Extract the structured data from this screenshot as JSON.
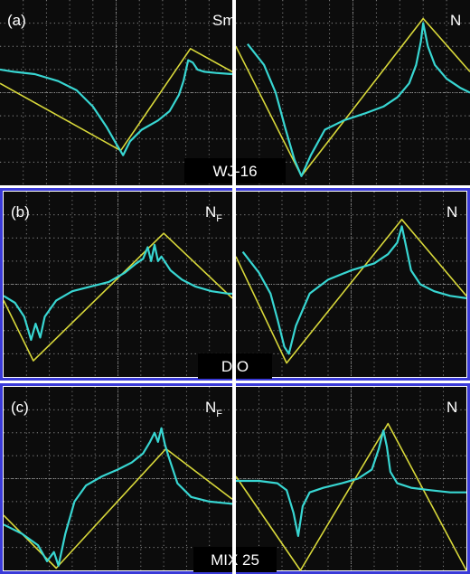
{
  "rows": [
    {
      "label": "(a)",
      "sample": "WJ-16",
      "border_color": "#ffffff",
      "panels": [
        {
          "phase": "SmA",
          "chart_data": {
            "type": "line",
            "xlim": [
              0,
              10
            ],
            "ylim": [
              0,
              8
            ],
            "grid": true,
            "series": [
              {
                "color": "#d8d83a",
                "x": [
                  0,
                  5.2,
                  8.2,
                  10
                ],
                "y": [
                  4.4,
                  1.5,
                  5.9,
                  4.9
                ]
              },
              {
                "color": "#38d6d2",
                "x": [
                  0,
                  0.6,
                  1.5,
                  2.5,
                  3.3,
                  4.0,
                  4.6,
                  5.0,
                  5.3,
                  5.6,
                  6.1,
                  6.8,
                  7.3,
                  7.7,
                  7.9,
                  8.1,
                  8.3,
                  8.5,
                  8.8,
                  9.3,
                  10
                ],
                "y": [
                  5.0,
                  4.9,
                  4.8,
                  4.5,
                  4.1,
                  3.4,
                  2.5,
                  1.8,
                  1.3,
                  1.9,
                  2.4,
                  2.8,
                  3.2,
                  3.9,
                  4.5,
                  5.4,
                  5.3,
                  5.0,
                  4.9,
                  4.85,
                  4.8
                ]
              }
            ]
          }
        },
        {
          "phase": "N",
          "chart_data": {
            "type": "line",
            "xlim": [
              0,
              10
            ],
            "ylim": [
              0,
              8
            ],
            "grid": true,
            "series": [
              {
                "color": "#d8d83a",
                "x": [
                  0,
                  2.8,
                  8.0,
                  10
                ],
                "y": [
                  6.0,
                  0.4,
                  7.2,
                  4.9
                ]
              },
              {
                "color": "#38d6d2",
                "x": [
                  0.5,
                  1.2,
                  1.7,
                  2.1,
                  2.5,
                  2.8,
                  3.2,
                  3.8,
                  4.6,
                  5.5,
                  6.3,
                  6.9,
                  7.4,
                  7.7,
                  7.9,
                  8.0,
                  8.2,
                  8.5,
                  9.0,
                  9.6,
                  10
                ],
                "y": [
                  6.1,
                  5.2,
                  4.0,
                  2.5,
                  1.1,
                  0.4,
                  1.3,
                  2.4,
                  2.8,
                  3.1,
                  3.4,
                  3.8,
                  4.4,
                  5.2,
                  6.2,
                  7.0,
                  6.0,
                  5.2,
                  4.6,
                  4.2,
                  4.0
                ]
              }
            ]
          }
        }
      ]
    },
    {
      "label": "(b)",
      "sample": "DIO",
      "border_color": "#3a3ad8",
      "panels": [
        {
          "phase_main": "N",
          "phase_sub": "F",
          "chart_data": {
            "type": "line",
            "xlim": [
              0,
              10
            ],
            "ylim": [
              0,
              8
            ],
            "grid": true,
            "series": [
              {
                "color": "#d8d83a",
                "x": [
                  0,
                  1.3,
                  7.0,
                  10
                ],
                "y": [
                  3.3,
                  0.7,
                  6.2,
                  3.4
                ]
              },
              {
                "color": "#38d6d2",
                "x": [
                  0,
                  0.5,
                  0.9,
                  1.2,
                  1.4,
                  1.6,
                  1.8,
                  2.3,
                  3.0,
                  3.8,
                  4.6,
                  5.3,
                  5.8,
                  6.1,
                  6.3,
                  6.45,
                  6.6,
                  6.75,
                  6.9,
                  7.3,
                  7.8,
                  8.4,
                  9.1,
                  9.8,
                  10
                ],
                "y": [
                  3.5,
                  3.2,
                  2.6,
                  1.6,
                  2.3,
                  1.7,
                  2.6,
                  3.3,
                  3.7,
                  3.9,
                  4.1,
                  4.5,
                  4.9,
                  5.1,
                  5.6,
                  5.0,
                  5.7,
                  5.0,
                  5.2,
                  4.6,
                  4.2,
                  3.9,
                  3.7,
                  3.6,
                  3.6
                ]
              }
            ]
          }
        },
        {
          "phase": "N",
          "chart_data": {
            "type": "line",
            "xlim": [
              0,
              10
            ],
            "ylim": [
              0,
              8
            ],
            "grid": true,
            "series": [
              {
                "color": "#d8d83a",
                "x": [
                  0,
                  2.2,
                  7.2,
                  10
                ],
                "y": [
                  5.2,
                  0.6,
                  6.8,
                  3.5
                ]
              },
              {
                "color": "#38d6d2",
                "x": [
                  0.3,
                  1.0,
                  1.5,
                  1.8,
                  2.1,
                  2.3,
                  2.6,
                  3.2,
                  4.0,
                  5.0,
                  6.0,
                  6.6,
                  7.0,
                  7.2,
                  7.35,
                  7.6,
                  8.0,
                  8.6,
                  9.3,
                  10
                ],
                "y": [
                  5.4,
                  4.5,
                  3.6,
                  2.5,
                  1.3,
                  1.0,
                  2.2,
                  3.6,
                  4.2,
                  4.6,
                  4.9,
                  5.3,
                  5.8,
                  6.5,
                  5.8,
                  4.6,
                  4.0,
                  3.7,
                  3.5,
                  3.4
                ]
              }
            ]
          }
        }
      ]
    },
    {
      "label": "(c)",
      "sample": "MIX 25",
      "border_color": "#3a3ad8",
      "panels": [
        {
          "phase_main": "N",
          "phase_sub": "F",
          "chart_data": {
            "type": "line",
            "xlim": [
              0,
              10
            ],
            "ylim": [
              0,
              8
            ],
            "grid": true,
            "series": [
              {
                "color": "#d8d83a",
                "x": [
                  0,
                  2.3,
                  7.1,
                  10
                ],
                "y": [
                  2.4,
                  0.1,
                  5.3,
                  3.1
                ]
              },
              {
                "color": "#38d6d2",
                "x": [
                  0,
                  0.8,
                  1.5,
                  1.9,
                  2.2,
                  2.4,
                  2.7,
                  3.1,
                  3.6,
                  4.3,
                  5.0,
                  5.6,
                  6.1,
                  6.4,
                  6.6,
                  6.75,
                  6.9,
                  7.05,
                  7.2,
                  7.6,
                  8.2,
                  9.0,
                  10
                ],
                "y": [
                  2.0,
                  1.6,
                  1.1,
                  0.4,
                  0.8,
                  0.2,
                  1.6,
                  3.0,
                  3.7,
                  4.1,
                  4.4,
                  4.7,
                  5.1,
                  5.6,
                  6.0,
                  5.6,
                  6.2,
                  5.5,
                  5.0,
                  3.8,
                  3.2,
                  3.0,
                  2.9
                ]
              }
            ]
          }
        },
        {
          "phase": "N",
          "chart_data": {
            "type": "line",
            "xlim": [
              0,
              10
            ],
            "ylim": [
              0,
              8
            ],
            "grid": true,
            "series": [
              {
                "color": "#d8d83a",
                "x": [
                  0,
                  2.8,
                  6.6,
                  10
                ],
                "y": [
                  4.1,
                  0.0,
                  6.4,
                  0.0
                ]
              },
              {
                "color": "#38d6d2",
                "x": [
                  0,
                  1.0,
                  1.8,
                  2.2,
                  2.5,
                  2.7,
                  2.9,
                  3.2,
                  3.8,
                  4.6,
                  5.3,
                  5.9,
                  6.2,
                  6.4,
                  6.55,
                  6.7,
                  7.0,
                  7.6,
                  8.4,
                  9.3,
                  10
                ],
                "y": [
                  3.9,
                  3.9,
                  3.8,
                  3.5,
                  2.5,
                  1.5,
                  2.8,
                  3.4,
                  3.6,
                  3.8,
                  4.0,
                  4.4,
                  5.3,
                  6.1,
                  5.4,
                  4.3,
                  3.8,
                  3.6,
                  3.5,
                  3.4,
                  3.4
                ]
              }
            ]
          }
        }
      ]
    }
  ]
}
